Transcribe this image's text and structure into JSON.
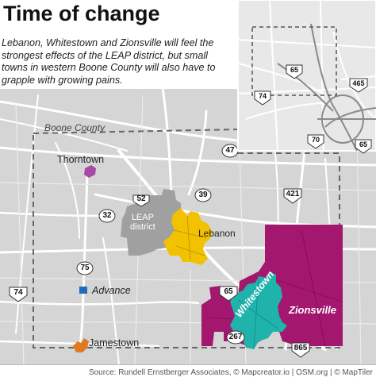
{
  "title": "Time of change",
  "description": "Lebanon, Whitestown and Zionsville will feel the strongest effects of the LEAP district, but small towns in western Boone County will also have to grapple with growing pains.",
  "source": "Source: Rundell Ernstberger Associates, © Mapcreator.io | OSM.org | © MapTiler",
  "labels": {
    "county": "Boone County",
    "thorntown": "Thorntown",
    "leap": "LEAP\ndistrict",
    "lebanon": "Lebanon",
    "advance": "Advance",
    "jamestown": "Jamestown",
    "whitestown": "Whitestown",
    "zionsville": "Zionsville"
  },
  "routes": {
    "r47": "47",
    "r52": "52",
    "r39": "39",
    "r421": "421",
    "r32": "32",
    "r75": "75",
    "r74": "74",
    "r65": "65",
    "r267": "267",
    "r865": "865",
    "inset_65a": "65",
    "inset_74": "74",
    "inset_465": "465",
    "inset_70": "70",
    "inset_65b": "65"
  },
  "colors": {
    "background": "#d5d5d5",
    "roads": "#ffffff",
    "county_border": "#666666",
    "leap_district": "#a0a0a0",
    "lebanon": "#f2c200",
    "whitestown": "#1fb3ac",
    "zionsville": "#a3176e",
    "thorntown": "#a64aa6",
    "advance": "#1f6fb8",
    "jamestown": "#e07a1f",
    "inset_background": "#e8e8e8"
  }
}
